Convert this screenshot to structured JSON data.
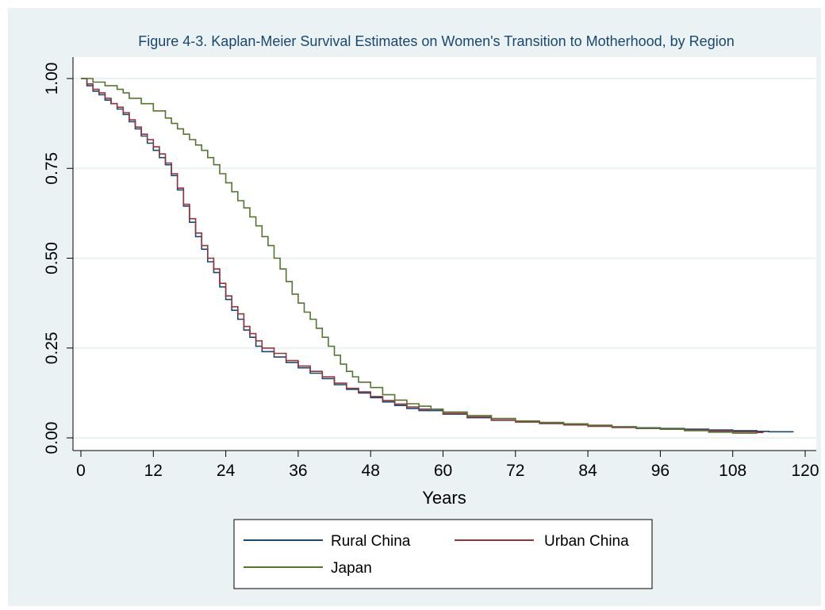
{
  "chart_data": {
    "type": "line",
    "step": true,
    "title": "Figure 4-3. Kaplan-Meier Survival Estimates on Women's Transition to Motherhood, by Region",
    "xlabel": "Years",
    "ylabel": "",
    "xlim": [
      0,
      120
    ],
    "ylim": [
      0,
      1
    ],
    "xticks": [
      "0",
      "12",
      "24",
      "36",
      "48",
      "60",
      "72",
      "84",
      "96",
      "108",
      "120"
    ],
    "yticks": [
      "0.00",
      "0.25",
      "0.50",
      "0.75",
      "1.00"
    ],
    "grid": "horizontal",
    "legend_position": "bottom",
    "series": [
      {
        "name": "Rural China",
        "color": "#1a476f",
        "points": [
          [
            0,
            1.0
          ],
          [
            1,
            0.98
          ],
          [
            2,
            0.965
          ],
          [
            3,
            0.955
          ],
          [
            4,
            0.94
          ],
          [
            5,
            0.93
          ],
          [
            6,
            0.915
          ],
          [
            7,
            0.9
          ],
          [
            8,
            0.88
          ],
          [
            9,
            0.86
          ],
          [
            10,
            0.84
          ],
          [
            11,
            0.82
          ],
          [
            12,
            0.8
          ],
          [
            13,
            0.78
          ],
          [
            14,
            0.76
          ],
          [
            15,
            0.73
          ],
          [
            16,
            0.69
          ],
          [
            17,
            0.645
          ],
          [
            18,
            0.6
          ],
          [
            19,
            0.56
          ],
          [
            20,
            0.525
          ],
          [
            21,
            0.49
          ],
          [
            22,
            0.46
          ],
          [
            23,
            0.42
          ],
          [
            24,
            0.385
          ],
          [
            25,
            0.355
          ],
          [
            26,
            0.33
          ],
          [
            27,
            0.3
          ],
          [
            28,
            0.28
          ],
          [
            29,
            0.255
          ],
          [
            30,
            0.24
          ],
          [
            32,
            0.225
          ],
          [
            34,
            0.21
          ],
          [
            36,
            0.195
          ],
          [
            38,
            0.18
          ],
          [
            40,
            0.165
          ],
          [
            42,
            0.148
          ],
          [
            44,
            0.135
          ],
          [
            46,
            0.125
          ],
          [
            48,
            0.112
          ],
          [
            50,
            0.1
          ],
          [
            52,
            0.09
          ],
          [
            54,
            0.082
          ],
          [
            56,
            0.076
          ],
          [
            60,
            0.066
          ],
          [
            64,
            0.056
          ],
          [
            68,
            0.049
          ],
          [
            72,
            0.045
          ],
          [
            76,
            0.041
          ],
          [
            80,
            0.037
          ],
          [
            84,
            0.034
          ],
          [
            88,
            0.031
          ],
          [
            92,
            0.028
          ],
          [
            96,
            0.026
          ],
          [
            100,
            0.024
          ],
          [
            104,
            0.022
          ],
          [
            108,
            0.02
          ],
          [
            112,
            0.018
          ],
          [
            114,
            0.017
          ],
          [
            118,
            0.016
          ]
        ]
      },
      {
        "name": "Urban China",
        "color": "#90353b",
        "points": [
          [
            0,
            1.0
          ],
          [
            1,
            0.985
          ],
          [
            2,
            0.97
          ],
          [
            3,
            0.96
          ],
          [
            4,
            0.945
          ],
          [
            5,
            0.93
          ],
          [
            6,
            0.92
          ],
          [
            7,
            0.905
          ],
          [
            8,
            0.885
          ],
          [
            9,
            0.865
          ],
          [
            10,
            0.845
          ],
          [
            11,
            0.83
          ],
          [
            12,
            0.81
          ],
          [
            13,
            0.79
          ],
          [
            14,
            0.765
          ],
          [
            15,
            0.735
          ],
          [
            16,
            0.695
          ],
          [
            17,
            0.65
          ],
          [
            18,
            0.61
          ],
          [
            19,
            0.57
          ],
          [
            20,
            0.535
          ],
          [
            21,
            0.5
          ],
          [
            22,
            0.47
          ],
          [
            23,
            0.43
          ],
          [
            24,
            0.395
          ],
          [
            25,
            0.365
          ],
          [
            26,
            0.345
          ],
          [
            27,
            0.31
          ],
          [
            28,
            0.29
          ],
          [
            29,
            0.27
          ],
          [
            30,
            0.25
          ],
          [
            32,
            0.235
          ],
          [
            34,
            0.215
          ],
          [
            36,
            0.2
          ],
          [
            38,
            0.185
          ],
          [
            40,
            0.17
          ],
          [
            42,
            0.152
          ],
          [
            44,
            0.138
          ],
          [
            46,
            0.128
          ],
          [
            48,
            0.115
          ],
          [
            50,
            0.104
          ],
          [
            52,
            0.094
          ],
          [
            54,
            0.086
          ],
          [
            56,
            0.08
          ],
          [
            60,
            0.068
          ],
          [
            64,
            0.058
          ],
          [
            68,
            0.05
          ],
          [
            72,
            0.044
          ],
          [
            76,
            0.04
          ],
          [
            80,
            0.036
          ],
          [
            84,
            0.032
          ],
          [
            88,
            0.029
          ],
          [
            92,
            0.026
          ],
          [
            96,
            0.024
          ],
          [
            100,
            0.022
          ],
          [
            104,
            0.019
          ],
          [
            108,
            0.017
          ],
          [
            112,
            0.015
          ],
          [
            113,
            0.013
          ]
        ]
      },
      {
        "name": "Japan",
        "color": "#55752f",
        "points": [
          [
            0,
            1.0
          ],
          [
            2,
            0.99
          ],
          [
            4,
            0.98
          ],
          [
            6,
            0.97
          ],
          [
            7,
            0.96
          ],
          [
            8,
            0.945
          ],
          [
            10,
            0.93
          ],
          [
            12,
            0.91
          ],
          [
            14,
            0.89
          ],
          [
            15,
            0.875
          ],
          [
            16,
            0.86
          ],
          [
            17,
            0.845
          ],
          [
            18,
            0.83
          ],
          [
            19,
            0.815
          ],
          [
            20,
            0.8
          ],
          [
            21,
            0.78
          ],
          [
            22,
            0.76
          ],
          [
            23,
            0.735
          ],
          [
            24,
            0.71
          ],
          [
            25,
            0.685
          ],
          [
            26,
            0.66
          ],
          [
            27,
            0.64
          ],
          [
            28,
            0.615
          ],
          [
            29,
            0.59
          ],
          [
            30,
            0.56
          ],
          [
            31,
            0.535
          ],
          [
            32,
            0.5
          ],
          [
            33,
            0.47
          ],
          [
            34,
            0.435
          ],
          [
            35,
            0.4
          ],
          [
            36,
            0.375
          ],
          [
            37,
            0.35
          ],
          [
            38,
            0.33
          ],
          [
            39,
            0.305
          ],
          [
            40,
            0.28
          ],
          [
            41,
            0.255
          ],
          [
            42,
            0.23
          ],
          [
            43,
            0.205
          ],
          [
            44,
            0.185
          ],
          [
            45,
            0.17
          ],
          [
            46,
            0.155
          ],
          [
            48,
            0.14
          ],
          [
            50,
            0.12
          ],
          [
            52,
            0.105
          ],
          [
            54,
            0.095
          ],
          [
            56,
            0.088
          ],
          [
            58,
            0.08
          ],
          [
            60,
            0.072
          ],
          [
            64,
            0.062
          ],
          [
            68,
            0.054
          ],
          [
            72,
            0.047
          ],
          [
            76,
            0.043
          ],
          [
            80,
            0.039
          ],
          [
            84,
            0.035
          ],
          [
            88,
            0.031
          ],
          [
            92,
            0.027
          ],
          [
            96,
            0.024
          ],
          [
            100,
            0.02
          ],
          [
            104,
            0.016
          ],
          [
            108,
            0.013
          ],
          [
            112,
            0.012
          ]
        ]
      }
    ]
  }
}
